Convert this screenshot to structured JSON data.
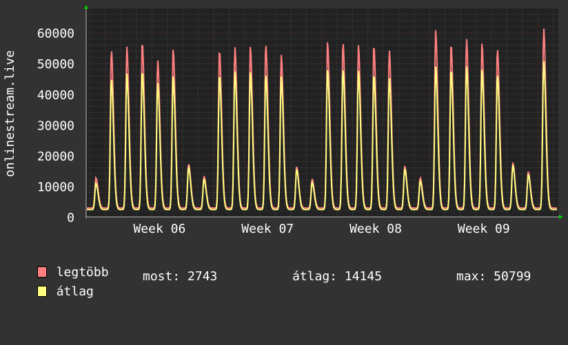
{
  "chart_data": {
    "type": "line",
    "title": "",
    "ylabel": "onlinestream.live",
    "xlabel": "",
    "ylim": [
      0,
      68000
    ],
    "yticks": [
      0,
      10000,
      20000,
      30000,
      40000,
      50000,
      60000
    ],
    "ytick_labels": [
      "0",
      "10000",
      "20000",
      "30000",
      "40000",
      "50000",
      "60000"
    ],
    "xtick_labels": [
      "Week 06",
      "Week 07",
      "Week 08",
      "Week 09"
    ],
    "grid": true,
    "x_unit": "day",
    "series": [
      {
        "name": "legtöbb",
        "color": "#ff8080",
        "daily_peaks": [
          12800,
          54600,
          55500,
          57000,
          51200,
          54600,
          17300,
          13300,
          54400,
          55500,
          55500,
          56400,
          52800,
          16400,
          12400,
          57000,
          57000,
          56000,
          56000,
          54400,
          16600,
          12800,
          60900,
          56400,
          58200,
          56600,
          55000,
          17700,
          14800,
          61600
        ]
      },
      {
        "name": "átlag",
        "color": "#ffff80",
        "daily_peaks": [
          11000,
          45200,
          46700,
          47600,
          43800,
          45800,
          16200,
          12400,
          46300,
          47600,
          47200,
          46500,
          45800,
          15500,
          11200,
          47900,
          48300,
          47600,
          46500,
          45400,
          15700,
          11700,
          49000,
          48100,
          49200,
          48100,
          46500,
          16900,
          13900,
          51000
        ]
      }
    ]
  },
  "legend": {
    "items": [
      {
        "label": "legtöbb",
        "color": "#ff8080"
      },
      {
        "label": "átlag",
        "color": "#ffff80"
      }
    ],
    "most": "most: 2743",
    "atlag": "átlag: 14145",
    "max": "max: 50799"
  }
}
